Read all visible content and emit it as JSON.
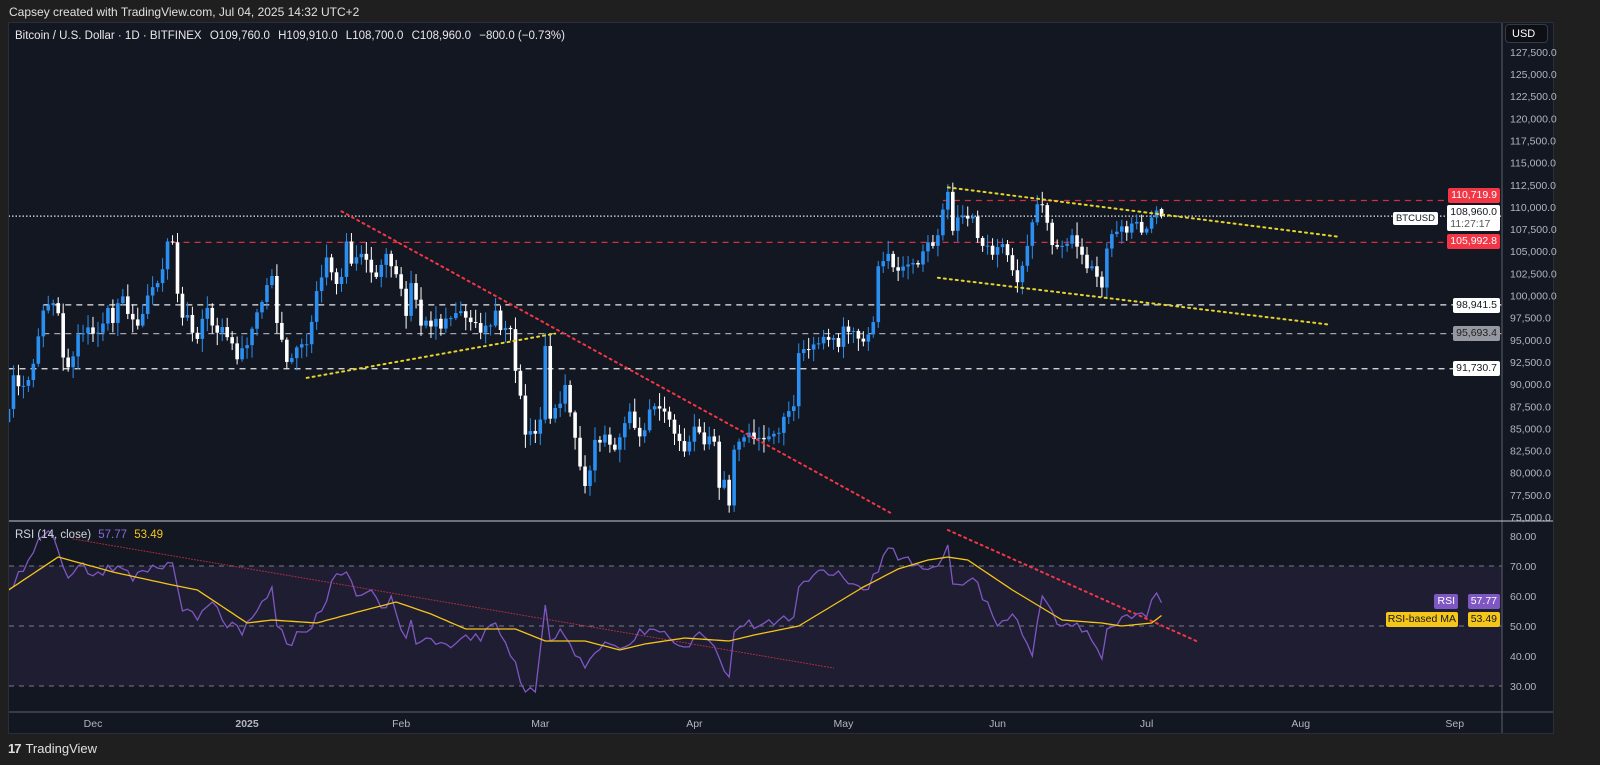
{
  "credit": "Capsey created with TradingView.com, Jul 04, 2025 14:32 UTC+2",
  "legend": {
    "symbol": "Bitcoin / U.S. Dollar · 1D · BITFINEX",
    "open": "O109,760.0",
    "high": "H109,910.0",
    "low": "L108,700.0",
    "close": "C108,960.0",
    "change": "−800.0 (−0.73%)"
  },
  "currency_button": "USD",
  "footer": {
    "brand": "TradingView"
  },
  "colors": {
    "up": "#2a8ff0",
    "down": "#ffffff",
    "rsi": "#7e57c2",
    "rsi_ma": "#f5c518",
    "resistance": "#f23645",
    "trend_yellow": "#e6d42a",
    "background": "#131722"
  },
  "price_badges": {
    "r1": "110,719.9",
    "current_symbol": "BTCUSD",
    "current_price": "108,960.0",
    "countdown": "11:27:17",
    "r2": "105,992.8",
    "s1": "98,941.5",
    "s2": "95,693.4",
    "s3": "91,730.7"
  },
  "rsi_panel": {
    "title": "RSI (14, close)",
    "rsi_value": "57.77",
    "ma_value": "53.49",
    "rsi_badge_label": "RSI",
    "ma_badge_label": "RSI-based MA"
  },
  "chart_data": {
    "type": "candlestick",
    "title": "Bitcoin / U.S. Dollar · 1D · BITFINEX",
    "interval": "1D",
    "price_axis": {
      "ylim": [
        74000,
        128000
      ],
      "ticks": [
        75000,
        77500,
        80000,
        82500,
        85000,
        87500,
        90000,
        92500,
        95000,
        97500,
        100000,
        102500,
        105000,
        107500,
        110000,
        112500,
        115000,
        117500,
        120000,
        122500,
        125000,
        127500
      ],
      "labels": [
        "75,000.0",
        "77,500.0",
        "80,000.0",
        "82,500.0",
        "85,000.0",
        "87,500.0",
        "90,000.0",
        "92,500.0",
        "95,000.0",
        "97,500.0",
        "100,000.0",
        "102,500.0",
        "105,000.0",
        "107,500.0",
        "110,000.0",
        "112,500.0",
        "115,000.0",
        "117,500.0",
        "120,000.0",
        "122,500.0",
        "125,000.0",
        "127,500.0"
      ]
    },
    "time_axis": {
      "labels": [
        {
          "date": "2024-12-01",
          "text": "Dec"
        },
        {
          "date": "2025-01-01",
          "text": "2025"
        },
        {
          "date": "2025-02-01",
          "text": "Feb"
        },
        {
          "date": "2025-03-01",
          "text": "Mar"
        },
        {
          "date": "2025-04-01",
          "text": "Apr"
        },
        {
          "date": "2025-05-01",
          "text": "May"
        },
        {
          "date": "2025-06-01",
          "text": "Jun"
        },
        {
          "date": "2025-07-01",
          "text": "Jul"
        },
        {
          "date": "2025-08-01",
          "text": "Aug"
        },
        {
          "date": "2025-09-01",
          "text": "Sep"
        }
      ]
    },
    "close_keypoints": [
      [
        "2024-11-14",
        87200
      ],
      [
        "2024-11-15",
        91000
      ],
      [
        "2024-11-17",
        89800
      ],
      [
        "2024-11-19",
        92300
      ],
      [
        "2024-11-21",
        98300
      ],
      [
        "2024-11-22",
        98900
      ],
      [
        "2024-11-24",
        98000
      ],
      [
        "2024-11-25",
        93000
      ],
      [
        "2024-11-26",
        91900
      ],
      [
        "2024-11-28",
        95600
      ],
      [
        "2024-11-30",
        96400
      ],
      [
        "2024-12-02",
        95800
      ],
      [
        "2024-12-04",
        98600
      ],
      [
        "2024-12-05",
        96900
      ],
      [
        "2024-12-07",
        99900
      ],
      [
        "2024-12-09",
        97300
      ],
      [
        "2024-12-10",
        96600
      ],
      [
        "2024-12-12",
        100000
      ],
      [
        "2024-12-14",
        101400
      ],
      [
        "2024-12-16",
        106100
      ],
      [
        "2024-12-17",
        106000
      ],
      [
        "2024-12-18",
        100200
      ],
      [
        "2024-12-19",
        97500
      ],
      [
        "2024-12-20",
        97800
      ],
      [
        "2024-12-22",
        95100
      ],
      [
        "2024-12-24",
        98600
      ],
      [
        "2024-12-26",
        95800
      ],
      [
        "2024-12-28",
        95300
      ],
      [
        "2024-12-30",
        92800
      ],
      [
        "2025-01-01",
        94400
      ],
      [
        "2025-01-03",
        98100
      ],
      [
        "2025-01-06",
        102200
      ],
      [
        "2025-01-07",
        96900
      ],
      [
        "2025-01-09",
        92500
      ],
      [
        "2025-01-12",
        94500
      ],
      [
        "2025-01-13",
        94500
      ],
      [
        "2025-01-15",
        100500
      ],
      [
        "2025-01-17",
        104300
      ],
      [
        "2025-01-19",
        101300
      ],
      [
        "2025-01-20",
        102100
      ],
      [
        "2025-01-21",
        106100
      ],
      [
        "2025-01-22",
        103600
      ],
      [
        "2025-01-24",
        104700
      ],
      [
        "2025-01-26",
        102600
      ],
      [
        "2025-01-27",
        102100
      ],
      [
        "2025-01-29",
        104700
      ],
      [
        "2025-01-31",
        102400
      ],
      [
        "2025-02-02",
        97700
      ],
      [
        "2025-02-03",
        101400
      ],
      [
        "2025-02-05",
        96600
      ],
      [
        "2025-02-07",
        96500
      ],
      [
        "2025-02-10",
        97400
      ],
      [
        "2025-02-14",
        97500
      ],
      [
        "2025-02-17",
        95800
      ],
      [
        "2025-02-20",
        98300
      ],
      [
        "2025-02-21",
        96100
      ],
      [
        "2025-02-23",
        96200
      ],
      [
        "2025-02-24",
        91500
      ],
      [
        "2025-02-25",
        88700
      ],
      [
        "2025-02-26",
        84300
      ],
      [
        "2025-02-27",
        84700
      ],
      [
        "2025-02-28",
        84400
      ],
      [
        "2025-03-01",
        86000
      ],
      [
        "2025-03-02",
        94300
      ],
      [
        "2025-03-03",
        86100
      ],
      [
        "2025-03-04",
        87300
      ],
      [
        "2025-03-06",
        89900
      ],
      [
        "2025-03-07",
        86800
      ],
      [
        "2025-03-09",
        80700
      ],
      [
        "2025-03-10",
        78500
      ],
      [
        "2025-03-12",
        83700
      ],
      [
        "2025-03-14",
        84300
      ],
      [
        "2025-03-16",
        82600
      ],
      [
        "2025-03-19",
        86900
      ],
      [
        "2025-03-21",
        84100
      ],
      [
        "2025-03-24",
        87500
      ],
      [
        "2025-03-26",
        86900
      ],
      [
        "2025-03-28",
        84400
      ],
      [
        "2025-03-30",
        82400
      ],
      [
        "2025-04-01",
        85200
      ],
      [
        "2025-04-03",
        83200
      ],
      [
        "2025-04-05",
        83500
      ],
      [
        "2025-04-06",
        78300
      ],
      [
        "2025-04-07",
        79200
      ],
      [
        "2025-04-08",
        76300
      ],
      [
        "2025-04-09",
        82600
      ],
      [
        "2025-04-11",
        84000
      ],
      [
        "2025-04-13",
        83800
      ],
      [
        "2025-04-16",
        84100
      ],
      [
        "2025-04-18",
        84500
      ],
      [
        "2025-04-21",
        87500
      ],
      [
        "2025-04-22",
        93500
      ],
      [
        "2025-04-24",
        93900
      ],
      [
        "2025-04-26",
        94600
      ],
      [
        "2025-04-28",
        95000
      ],
      [
        "2025-04-30",
        94200
      ],
      [
        "2025-05-01",
        96500
      ],
      [
        "2025-05-03",
        96000
      ],
      [
        "2025-05-05",
        94800
      ],
      [
        "2025-05-07",
        97000
      ],
      [
        "2025-05-08",
        103300
      ],
      [
        "2025-05-10",
        104700
      ],
      [
        "2025-05-12",
        102800
      ],
      [
        "2025-05-14",
        103500
      ],
      [
        "2025-05-16",
        103500
      ],
      [
        "2025-05-18",
        106000
      ],
      [
        "2025-05-19",
        105600
      ],
      [
        "2025-05-20",
        106800
      ],
      [
        "2025-05-21",
        109700
      ],
      [
        "2025-05-22",
        111700
      ],
      [
        "2025-05-23",
        107300
      ],
      [
        "2025-05-25",
        109000
      ],
      [
        "2025-05-27",
        108900
      ],
      [
        "2025-05-29",
        105600
      ],
      [
        "2025-05-31",
        104600
      ],
      [
        "2025-06-02",
        105800
      ],
      [
        "2025-06-05",
        101500
      ],
      [
        "2025-06-07",
        105600
      ],
      [
        "2025-06-09",
        110300
      ],
      [
        "2025-06-10",
        110200
      ],
      [
        "2025-06-12",
        105700
      ],
      [
        "2025-06-14",
        105600
      ],
      [
        "2025-06-16",
        106800
      ],
      [
        "2025-06-18",
        104600
      ],
      [
        "2025-06-20",
        103300
      ],
      [
        "2025-06-22",
        100900
      ],
      [
        "2025-06-23",
        105300
      ],
      [
        "2025-06-25",
        107200
      ],
      [
        "2025-06-27",
        107100
      ],
      [
        "2025-06-29",
        108300
      ],
      [
        "2025-06-30",
        107100
      ],
      [
        "2025-07-02",
        108800
      ],
      [
        "2025-07-03",
        109600
      ],
      [
        "2025-07-04",
        108960
      ]
    ],
    "last_candle": {
      "date": "2025-07-04",
      "open": 109760,
      "high": 109910,
      "low": 108700,
      "close": 108960
    },
    "horizontal_levels": [
      {
        "price": 110719.9,
        "style": "dashed",
        "color": "#f23645",
        "from": "2025-05-21"
      },
      {
        "price": 108960.0,
        "style": "dotted",
        "color": "#ffffff",
        "from": "2024-11-14"
      },
      {
        "price": 105992.8,
        "style": "dashed",
        "color": "#f23645",
        "from": "2024-12-17"
      },
      {
        "price": 98941.5,
        "style": "dashed",
        "color": "#ffffff",
        "from": "2024-11-21"
      },
      {
        "price": 95693.4,
        "style": "dashed",
        "color": "#b2b5be",
        "from": "2024-11-21"
      },
      {
        "price": 91730.7,
        "style": "dashed",
        "color": "#ffffff",
        "from": "2024-11-14"
      }
    ],
    "trend_lines": [
      {
        "from": [
          "2025-01-20",
          109500
        ],
        "to": [
          "2025-05-11",
          75300
        ],
        "color": "#f23645"
      },
      {
        "from": [
          "2025-01-13",
          90700
        ],
        "to": [
          "2025-03-04",
          95700
        ],
        "color": "#e6d42a"
      },
      {
        "from": [
          "2025-05-22",
          112200
        ],
        "to": [
          "2025-08-09",
          106600
        ],
        "color": "#e6d42a"
      },
      {
        "from": [
          "2025-05-20",
          102000
        ],
        "to": [
          "2025-08-07",
          96700
        ],
        "color": "#e6d42a"
      }
    ],
    "rsi": {
      "ylim": [
        22,
        82
      ],
      "ticks": [
        30,
        40,
        50,
        60,
        70,
        80
      ],
      "labels": [
        "30.00",
        "40.00",
        "50.00",
        "60.00",
        "70.00",
        "80.00"
      ],
      "bands": {
        "upper": 70,
        "middle": 50,
        "lower": 30
      },
      "rsi_keypoints": [
        [
          "2024-11-14",
          62
        ],
        [
          "2024-11-18",
          72
        ],
        [
          "2024-11-21",
          80
        ],
        [
          "2024-11-23",
          80
        ],
        [
          "2024-11-26",
          66
        ],
        [
          "2024-11-28",
          70
        ],
        [
          "2024-12-02",
          68
        ],
        [
          "2024-12-06",
          70
        ],
        [
          "2024-12-09",
          65
        ],
        [
          "2024-12-12",
          68
        ],
        [
          "2024-12-17",
          71
        ],
        [
          "2024-12-19",
          55
        ],
        [
          "2024-12-22",
          52
        ],
        [
          "2024-12-25",
          58
        ],
        [
          "2024-12-27",
          52
        ],
        [
          "2024-12-31",
          47
        ],
        [
          "2025-01-03",
          55
        ],
        [
          "2025-01-06",
          63
        ],
        [
          "2025-01-07",
          50
        ],
        [
          "2025-01-09",
          44
        ],
        [
          "2025-01-12",
          48
        ],
        [
          "2025-01-13",
          48
        ],
        [
          "2025-01-16",
          55
        ],
        [
          "2025-01-18",
          65
        ],
        [
          "2025-01-20",
          67
        ],
        [
          "2025-01-21",
          68
        ],
        [
          "2025-01-23",
          60
        ],
        [
          "2025-01-26",
          62
        ],
        [
          "2025-01-28",
          56
        ],
        [
          "2025-01-30",
          60
        ],
        [
          "2025-02-02",
          46
        ],
        [
          "2025-02-03",
          52
        ],
        [
          "2025-02-04",
          44
        ],
        [
          "2025-02-10",
          44
        ],
        [
          "2025-02-14",
          47
        ],
        [
          "2025-02-17",
          45
        ],
        [
          "2025-02-20",
          51
        ],
        [
          "2025-02-21",
          47
        ],
        [
          "2025-02-24",
          38
        ],
        [
          "2025-02-26",
          28
        ],
        [
          "2025-02-28",
          28
        ],
        [
          "2025-03-02",
          57
        ],
        [
          "2025-03-03",
          45
        ],
        [
          "2025-03-05",
          49
        ],
        [
          "2025-03-07",
          44
        ],
        [
          "2025-03-10",
          36
        ],
        [
          "2025-03-12",
          41
        ],
        [
          "2025-03-15",
          44
        ],
        [
          "2025-03-18",
          43
        ],
        [
          "2025-03-21",
          49
        ],
        [
          "2025-03-25",
          48
        ],
        [
          "2025-03-27",
          46
        ],
        [
          "2025-03-30",
          43
        ],
        [
          "2025-04-02",
          48
        ],
        [
          "2025-04-04",
          45
        ],
        [
          "2025-04-07",
          35
        ],
        [
          "2025-04-08",
          33
        ],
        [
          "2025-04-09",
          48
        ],
        [
          "2025-04-12",
          52
        ],
        [
          "2025-04-14",
          50
        ],
        [
          "2025-04-18",
          52
        ],
        [
          "2025-04-21",
          53
        ],
        [
          "2025-04-22",
          63
        ],
        [
          "2025-04-25",
          67
        ],
        [
          "2025-04-28",
          67
        ],
        [
          "2025-05-01",
          66
        ],
        [
          "2025-05-05",
          62
        ],
        [
          "2025-05-08",
          68
        ],
        [
          "2025-05-10",
          76
        ],
        [
          "2025-05-12",
          72
        ],
        [
          "2025-05-14",
          73
        ],
        [
          "2025-05-17",
          69
        ],
        [
          "2025-05-20",
          70
        ],
        [
          "2025-05-22",
          77
        ],
        [
          "2025-05-23",
          64
        ],
        [
          "2025-05-27",
          66
        ],
        [
          "2025-05-30",
          58
        ],
        [
          "2025-06-01",
          50
        ],
        [
          "2025-06-04",
          54
        ],
        [
          "2025-06-06",
          47
        ],
        [
          "2025-06-08",
          40
        ],
        [
          "2025-06-10",
          60
        ],
        [
          "2025-06-12",
          55
        ],
        [
          "2025-06-14",
          50
        ],
        [
          "2025-06-17",
          51
        ],
        [
          "2025-06-20",
          45
        ],
        [
          "2025-06-22",
          39
        ],
        [
          "2025-06-23",
          49
        ],
        [
          "2025-06-26",
          53
        ],
        [
          "2025-06-29",
          54
        ],
        [
          "2025-07-01",
          53
        ],
        [
          "2025-07-03",
          61
        ],
        [
          "2025-07-04",
          57.77
        ]
      ],
      "ma_keypoints": [
        [
          "2024-11-14",
          62
        ],
        [
          "2024-11-24",
          73
        ],
        [
          "2024-12-05",
          68
        ],
        [
          "2024-12-16",
          64
        ],
        [
          "2024-12-22",
          62
        ],
        [
          "2025-01-01",
          51
        ],
        [
          "2025-01-06",
          52
        ],
        [
          "2025-01-15",
          51
        ],
        [
          "2025-01-24",
          55
        ],
        [
          "2025-01-31",
          58
        ],
        [
          "2025-02-07",
          54
        ],
        [
          "2025-02-14",
          49
        ],
        [
          "2025-02-24",
          49
        ],
        [
          "2025-03-02",
          45
        ],
        [
          "2025-03-10",
          45
        ],
        [
          "2025-03-17",
          42
        ],
        [
          "2025-03-22",
          44
        ],
        [
          "2025-03-30",
          46
        ],
        [
          "2025-04-08",
          45
        ],
        [
          "2025-04-13",
          47
        ],
        [
          "2025-04-22",
          50
        ],
        [
          "2025-04-28",
          56
        ],
        [
          "2025-05-05",
          63
        ],
        [
          "2025-05-12",
          69
        ],
        [
          "2025-05-18",
          72
        ],
        [
          "2025-05-22",
          73
        ],
        [
          "2025-05-26",
          72
        ],
        [
          "2025-06-04",
          62
        ],
        [
          "2025-06-14",
          52
        ],
        [
          "2025-06-22",
          51
        ],
        [
          "2025-06-26",
          50
        ],
        [
          "2025-07-02",
          51
        ],
        [
          "2025-07-04",
          53.49
        ]
      ],
      "trend_lines": [
        {
          "from": [
            "2024-11-27",
            79
          ],
          "to": [
            "2025-04-29",
            36
          ],
          "color": "#f23645"
        },
        {
          "from": [
            "2025-05-22",
            82
          ],
          "to": [
            "2025-07-11",
            45
          ],
          "color": "#f23645"
        }
      ]
    }
  }
}
